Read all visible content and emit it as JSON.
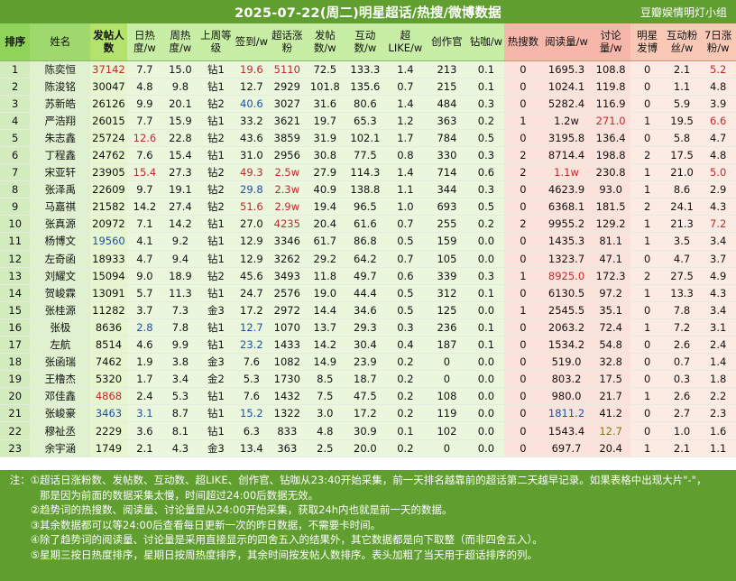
{
  "title": "2025-07-22(周二)明星超话/热搜/微博数据",
  "source": "豆瓣娱情明灯小组",
  "columns": [
    {
      "label": "排序",
      "type": "rank"
    },
    {
      "label": "姓名",
      "type": "name"
    },
    {
      "label": "发帖人数",
      "type": "posts"
    },
    {
      "label": "日热度/w",
      "type": "green"
    },
    {
      "label": "周热度/w",
      "type": "green"
    },
    {
      "label": "上周等级",
      "type": "green"
    },
    {
      "label": "签到/w",
      "type": "green"
    },
    {
      "label": "超话涨粉",
      "type": "green"
    },
    {
      "label": "发帖数/w",
      "type": "green"
    },
    {
      "label": "互动数/w",
      "type": "green"
    },
    {
      "label": "超LIKE/w",
      "type": "green"
    },
    {
      "label": "创作官",
      "type": "green"
    },
    {
      "label": "钻咖/w",
      "type": "green"
    },
    {
      "label": "热搜数",
      "type": "pink"
    },
    {
      "label": "阅读量/w",
      "type": "pink"
    },
    {
      "label": "讨论量/w",
      "type": "pink"
    },
    {
      "label": "明星发博",
      "type": "peach"
    },
    {
      "label": "互动粉丝/w",
      "type": "peach"
    },
    {
      "label": "7日涨粉/w",
      "type": "peach"
    }
  ],
  "rows": [
    [
      "1",
      "陈奕恒",
      "37142",
      "7.7",
      "15.0",
      "钻1",
      "19.6",
      "5110",
      "72.5",
      "133.3",
      "1.4",
      "213",
      "0.1",
      "0",
      "1695.3",
      "108.8",
      "0",
      "2.1",
      "5.2"
    ],
    [
      "2",
      "陈浚铭",
      "30047",
      "4.8",
      "9.8",
      "钻1",
      "12.7",
      "2929",
      "101.8",
      "135.6",
      "0.7",
      "215",
      "0.1",
      "0",
      "1024.1",
      "119.8",
      "0",
      "1.1",
      "4.8"
    ],
    [
      "3",
      "苏新皓",
      "26126",
      "9.9",
      "20.1",
      "钻2",
      "40.6",
      "3027",
      "31.6",
      "80.6",
      "1.4",
      "484",
      "0.3",
      "0",
      "5282.4",
      "116.9",
      "0",
      "5.9",
      "3.9"
    ],
    [
      "4",
      "严浩翔",
      "26015",
      "7.7",
      "15.9",
      "钻1",
      "33.2",
      "3621",
      "19.7",
      "65.3",
      "1.2",
      "363",
      "0.2",
      "1",
      "1.2w",
      "271.0",
      "1",
      "19.5",
      "6.6"
    ],
    [
      "5",
      "朱志鑫",
      "25724",
      "12.6",
      "22.8",
      "钻2",
      "43.6",
      "3859",
      "31.9",
      "102.1",
      "1.7",
      "784",
      "0.5",
      "0",
      "3195.8",
      "136.4",
      "0",
      "5.8",
      "4.7"
    ],
    [
      "6",
      "丁程鑫",
      "24762",
      "7.6",
      "15.4",
      "钻1",
      "31.0",
      "2956",
      "30.8",
      "77.5",
      "0.8",
      "330",
      "0.3",
      "2",
      "8714.4",
      "198.8",
      "2",
      "17.5",
      "4.8"
    ],
    [
      "7",
      "宋亚轩",
      "23905",
      "15.4",
      "27.3",
      "钻2",
      "49.3",
      "2.5w",
      "27.9",
      "114.3",
      "1.4",
      "714",
      "0.6",
      "2",
      "1.1w",
      "230.8",
      "1",
      "21.0",
      "5.0"
    ],
    [
      "8",
      "张泽禹",
      "22609",
      "9.7",
      "19.1",
      "钻2",
      "29.8",
      "2.3w",
      "40.9",
      "138.8",
      "1.1",
      "344",
      "0.3",
      "0",
      "4623.9",
      "93.0",
      "1",
      "8.6",
      "2.9"
    ],
    [
      "9",
      "马嘉祺",
      "21582",
      "14.2",
      "27.4",
      "钻2",
      "51.6",
      "2.9w",
      "19.4",
      "96.5",
      "1.0",
      "693",
      "0.5",
      "0",
      "6368.1",
      "181.5",
      "2",
      "24.1",
      "4.3"
    ],
    [
      "10",
      "张真源",
      "20972",
      "7.1",
      "14.2",
      "钻1",
      "27.0",
      "4235",
      "20.4",
      "61.6",
      "0.7",
      "255",
      "0.2",
      "2",
      "9955.2",
      "129.2",
      "1",
      "21.3",
      "7.2"
    ],
    [
      "11",
      "杨博文",
      "19560",
      "4.1",
      "9.2",
      "钻1",
      "12.9",
      "3346",
      "61.7",
      "86.8",
      "0.5",
      "159",
      "0.0",
      "0",
      "1435.3",
      "81.1",
      "1",
      "3.5",
      "3.4"
    ],
    [
      "12",
      "左奇函",
      "18933",
      "4.7",
      "9.4",
      "钻1",
      "12.9",
      "3262",
      "29.2",
      "64.2",
      "0.7",
      "105",
      "0.0",
      "0",
      "1323.7",
      "47.1",
      "0",
      "4.7",
      "3.7"
    ],
    [
      "13",
      "刘耀文",
      "15094",
      "9.0",
      "18.9",
      "钻2",
      "45.6",
      "3493",
      "11.8",
      "49.7",
      "0.6",
      "339",
      "0.3",
      "1",
      "8925.0",
      "172.3",
      "2",
      "27.5",
      "4.9"
    ],
    [
      "14",
      "贺峻霖",
      "13091",
      "5.7",
      "11.3",
      "钻1",
      "24.7",
      "2576",
      "19.0",
      "44.4",
      "0.5",
      "312",
      "0.1",
      "0",
      "6130.5",
      "97.2",
      "1",
      "13.3",
      "4.3"
    ],
    [
      "15",
      "张桂源",
      "11282",
      "3.7",
      "7.3",
      "金3",
      "17.2",
      "2972",
      "14.4",
      "34.6",
      "0.5",
      "125",
      "0.0",
      "1",
      "2545.5",
      "35.1",
      "0",
      "7.8",
      "3.4"
    ],
    [
      "16",
      "张极",
      "8636",
      "2.8",
      "7.8",
      "钻1",
      "12.7",
      "1070",
      "13.7",
      "29.3",
      "0.3",
      "236",
      "0.1",
      "0",
      "2063.2",
      "72.4",
      "1",
      "7.2",
      "3.1"
    ],
    [
      "17",
      "左航",
      "8514",
      "4.6",
      "9.9",
      "钻1",
      "23.2",
      "1433",
      "14.2",
      "30.4",
      "0.4",
      "187",
      "0.1",
      "0",
      "1534.2",
      "54.8",
      "0",
      "2.6",
      "2.4"
    ],
    [
      "18",
      "张函瑞",
      "7462",
      "1.9",
      "3.8",
      "金3",
      "7.6",
      "1082",
      "14.9",
      "23.9",
      "0.2",
      "0",
      "0.0",
      "0",
      "519.0",
      "32.8",
      "0",
      "0.7",
      "1.4"
    ],
    [
      "19",
      "王橹杰",
      "5320",
      "1.7",
      "3.4",
      "金2",
      "5.3",
      "1730",
      "8.5",
      "18.7",
      "0.2",
      "0",
      "0.0",
      "0",
      "803.2",
      "17.5",
      "0",
      "0.3",
      "1.8"
    ],
    [
      "20",
      "邓佳鑫",
      "4868",
      "2.4",
      "5.3",
      "钻1",
      "7.6",
      "1432",
      "7.5",
      "47.5",
      "0.2",
      "108",
      "0.0",
      "0",
      "980.0",
      "21.7",
      "1",
      "2.6",
      "2.2"
    ],
    [
      "21",
      "张峻豪",
      "3463",
      "3.1",
      "8.7",
      "钻1",
      "15.2",
      "1322",
      "3.0",
      "17.2",
      "0.2",
      "119",
      "0.0",
      "0",
      "1811.2",
      "41.2",
      "0",
      "2.7",
      "2.3"
    ],
    [
      "22",
      "穆祉丞",
      "2229",
      "3.6",
      "8.1",
      "钻1",
      "6.3",
      "833",
      "4.8",
      "30.9",
      "0.1",
      "102",
      "0.0",
      "0",
      "1543.4",
      "12.7",
      "0",
      "1.0",
      "1.6"
    ],
    [
      "23",
      "余宇涵",
      "1749",
      "2.1",
      "4.3",
      "金3",
      "13.4",
      "363",
      "2.5",
      "20.0",
      "0.2",
      "0",
      "0.0",
      "0",
      "697.7",
      "20.4",
      "1",
      "2.1",
      "1.1"
    ]
  ],
  "cell_colors": {
    "accent_red": "#c1272d",
    "accent_blue": "#1f4fa8",
    "accent_olive": "#7e7a12",
    "red": [
      [
        0,
        2
      ],
      [
        0,
        6
      ],
      [
        0,
        7
      ],
      [
        0,
        18
      ],
      [
        3,
        15
      ],
      [
        3,
        18
      ],
      [
        4,
        3
      ],
      [
        6,
        3
      ],
      [
        6,
        6
      ],
      [
        6,
        7
      ],
      [
        6,
        14
      ],
      [
        6,
        18
      ],
      [
        7,
        7
      ],
      [
        8,
        6
      ],
      [
        8,
        7
      ],
      [
        9,
        7
      ],
      [
        9,
        18
      ],
      [
        12,
        14
      ],
      [
        19,
        2
      ]
    ],
    "blue": [
      [
        2,
        6
      ],
      [
        7,
        6
      ],
      [
        10,
        2
      ],
      [
        15,
        3
      ],
      [
        15,
        6
      ],
      [
        16,
        6
      ],
      [
        20,
        2
      ],
      [
        20,
        3
      ],
      [
        20,
        6
      ],
      [
        20,
        14
      ]
    ],
    "olive": [
      [
        21,
        15
      ]
    ]
  },
  "notes": [
    {
      "label": "注：①",
      "text": "超话日涨粉数、发帖数、互动数、超LIKE、创作官、钻咖从23:40开始采集，前一天排名越靠前的超话第二天越早记录。如果表格中出现大片\"-\"，"
    },
    {
      "label": "",
      "text": "那是因为前面的数据采集太慢，时间超过24:00后数据无效。"
    },
    {
      "label": "②",
      "text": "趋势词的热搜数、阅读量、讨论量是从24:00开始采集，获取24h内也就是前一天的数据。"
    },
    {
      "label": "③",
      "text": "其余数据都可以等24:00后查看每日更新一次的昨日数据，不需要卡时间。"
    },
    {
      "label": "④",
      "text": "除了趋势词的阅读量、讨论量是采用直接显示的四舍五入的结果外，其它数据都是向下取整（而非四舍五入）。"
    },
    {
      "label": "⑤",
      "text": "星期三按日热度排序，星期日按周热度排序，其余时间按发帖人数排序。表头加粗了当天用于超话排序的列。"
    }
  ]
}
